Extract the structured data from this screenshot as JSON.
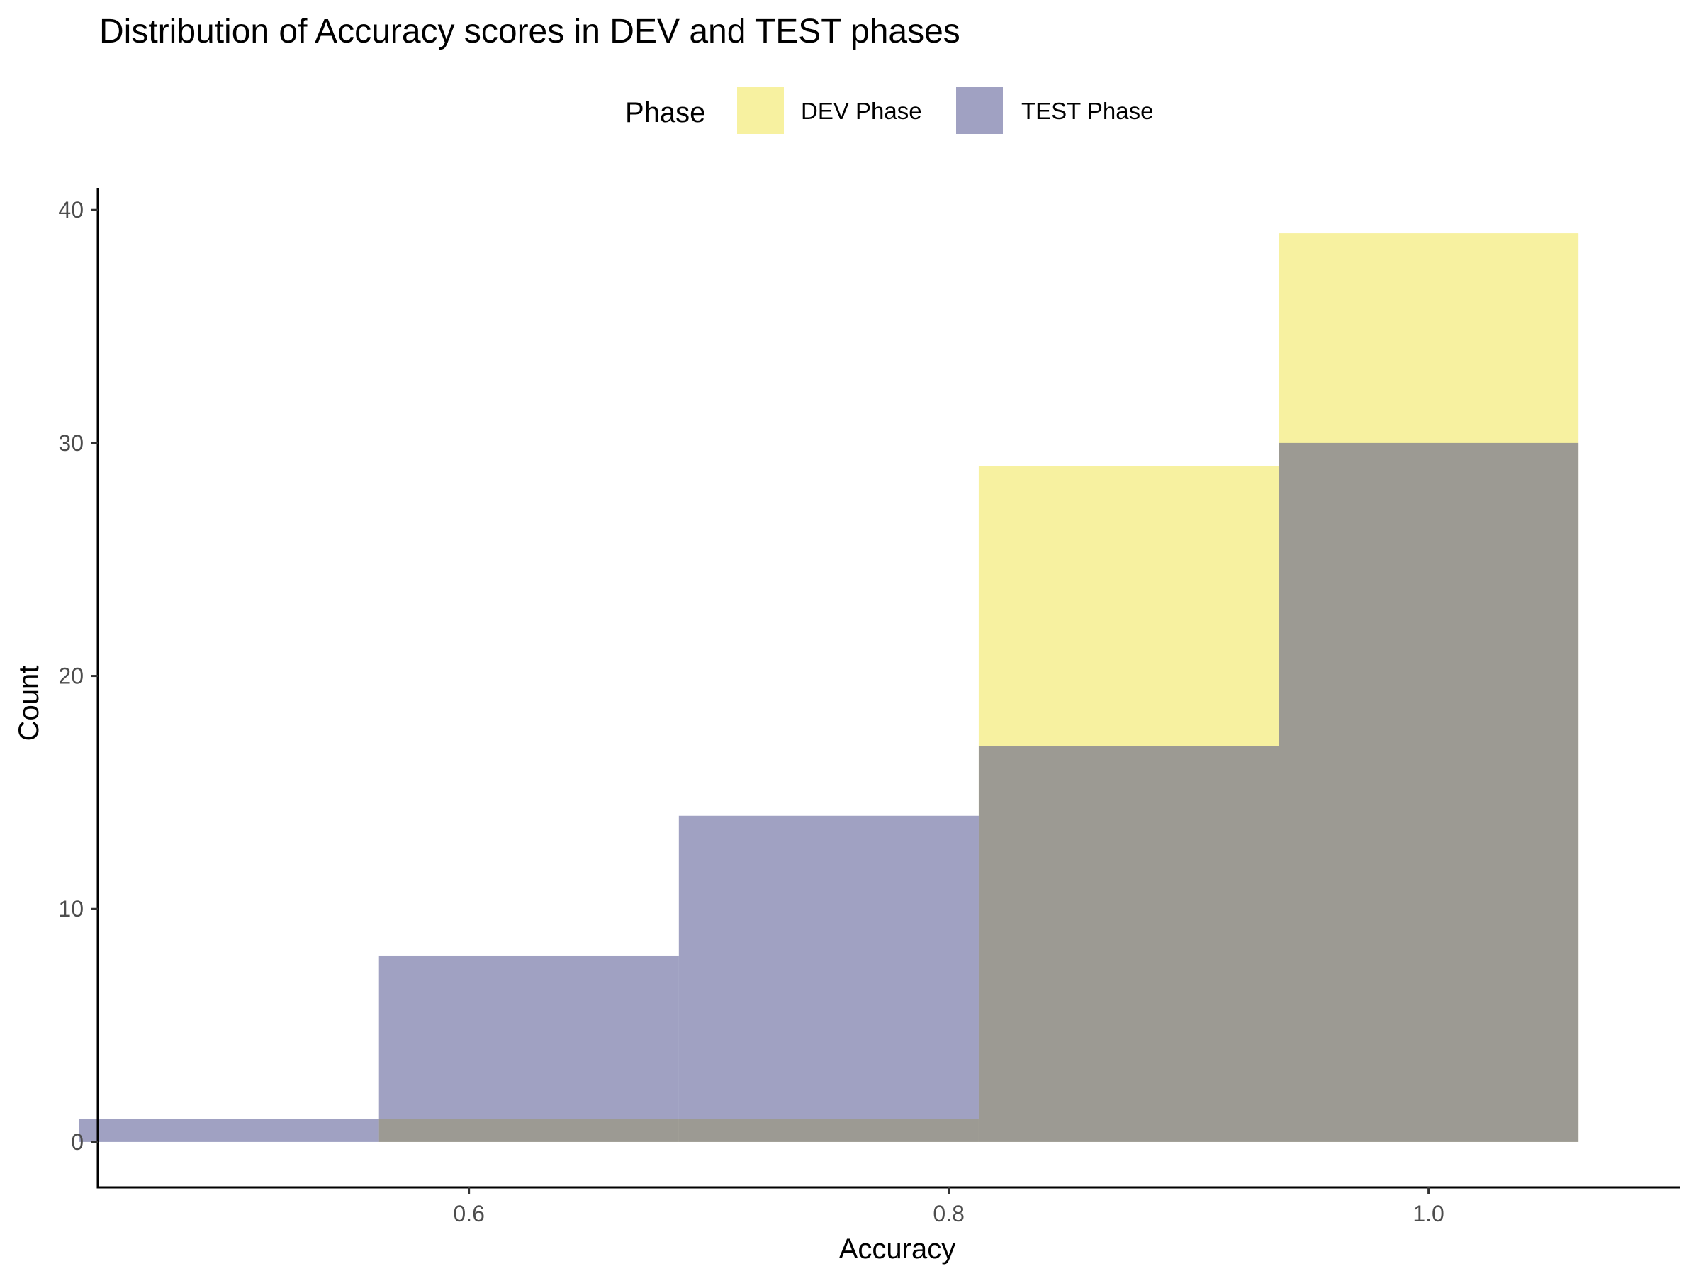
{
  "chart_data": {
    "type": "histogram",
    "title": "Distribution of Accuracy scores in DEV and TEST phases",
    "xlabel": "Accuracy",
    "ylabel": "Count",
    "xlim": [
      0.4453,
      1.1047
    ],
    "ylim": [
      -1.95,
      40.95
    ],
    "x_ticks": [
      0.6,
      0.8,
      1.0
    ],
    "x_tick_labels": [
      "0.6",
      "0.8",
      "1.0"
    ],
    "y_ticks": [
      0,
      10,
      20,
      30,
      40
    ],
    "y_tick_labels": [
      "0",
      "10",
      "20",
      "30",
      "40"
    ],
    "bin_width": 0.125,
    "grid": false,
    "legend": {
      "title": "Phase",
      "position": "top",
      "entries": [
        "DEV Phase",
        "TEST Phase"
      ]
    },
    "series": [
      {
        "name": "DEV Phase",
        "color": "#f0e442",
        "opacity": 0.5,
        "bins": [
          {
            "x0": 0.5625,
            "x1": 0.6875,
            "count": 1
          },
          {
            "x0": 0.6875,
            "x1": 0.8125,
            "count": 1
          },
          {
            "x0": 0.8125,
            "x1": 0.9375,
            "count": 29
          },
          {
            "x0": 0.9375,
            "x1": 1.0625,
            "count": 39
          }
        ]
      },
      {
        "name": "TEST Phase",
        "color": "#424386",
        "opacity": 0.5,
        "bins": [
          {
            "x0": 0.4375,
            "x1": 0.5625,
            "count": 1
          },
          {
            "x0": 0.5625,
            "x1": 0.6875,
            "count": 8
          },
          {
            "x0": 0.6875,
            "x1": 0.8125,
            "count": 14
          },
          {
            "x0": 0.8125,
            "x1": 0.9375,
            "count": 17
          },
          {
            "x0": 0.9375,
            "x1": 1.0625,
            "count": 30
          }
        ]
      }
    ]
  }
}
